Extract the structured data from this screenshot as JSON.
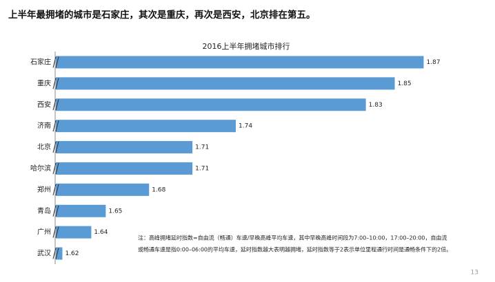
{
  "heading": "上半年最拥堵的城市是石家庄，其次是重庆，再次是西安，北京排在第五。",
  "chart_data": {
    "type": "bar",
    "orientation": "horizontal",
    "title": "2016上半年拥堵城市排行",
    "categories": [
      "石家庄",
      "重庆",
      "西安",
      "济南",
      "北京",
      "哈尔滨",
      "郑州",
      "青岛",
      "广州",
      "武汉"
    ],
    "values": [
      1.87,
      1.85,
      1.83,
      1.74,
      1.71,
      1.71,
      1.68,
      1.65,
      1.64,
      1.62
    ],
    "color": "#5b9bd5",
    "xlim": [
      1.615,
      1.875
    ],
    "axis_break": true
  },
  "note": [
    "注：高峰拥堵延时指数=自由流（畅通）车速/早晚高峰平均车速，其中早晚高峰时间段为7:00–10:00，17:00–20:00，自由流",
    "或畅通车速是指0:00–06:00的平均车速，延时指数越大表明越拥堵，延时指数等于2表示单位里程通行时间是通畅条件下的2倍。"
  ],
  "page_number": "13"
}
